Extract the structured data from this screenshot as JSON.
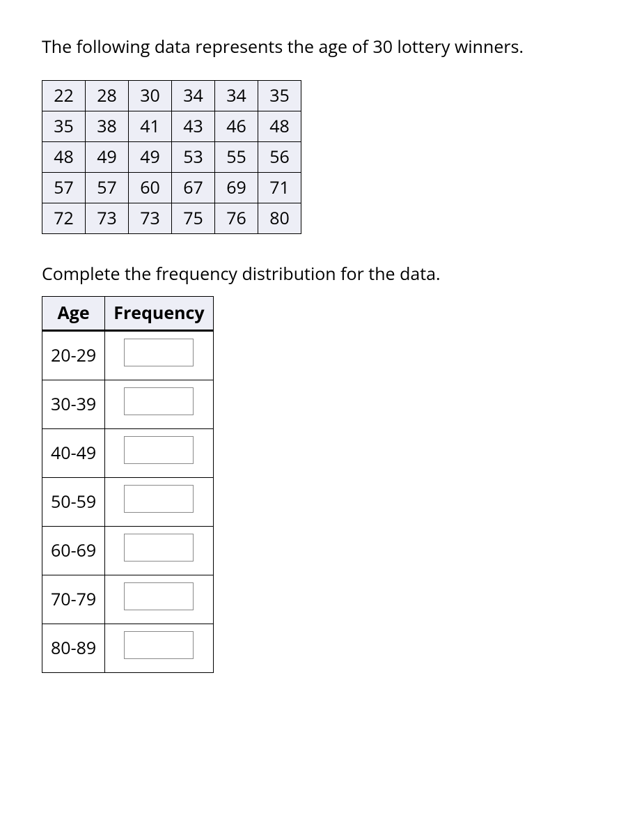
{
  "intro_text": "The following data represents the age of 30 lottery winners.",
  "completion_text": "Complete the frequency distribution for the data.",
  "data_table": {
    "rows": [
      [
        "22",
        "28",
        "30",
        "34",
        "34",
        "35"
      ],
      [
        "35",
        "38",
        "41",
        "43",
        "46",
        "48"
      ],
      [
        "48",
        "49",
        "49",
        "53",
        "55",
        "56"
      ],
      [
        "57",
        "57",
        "60",
        "67",
        "69",
        "71"
      ],
      [
        "72",
        "73",
        "73",
        "75",
        "76",
        "80"
      ]
    ],
    "cell_bg": "#edeef6",
    "border_color": "#000000"
  },
  "freq_table": {
    "headers": {
      "age": "Age",
      "frequency": "Frequency"
    },
    "ranges": [
      "20-29",
      "30-39",
      "40-49",
      "50-59",
      "60-69",
      "70-79",
      "80-89"
    ],
    "header_bg": "#edeef6",
    "cell_bg": "#ffffff",
    "input_border": "#8a8a8a"
  },
  "colors": {
    "background": "#ffffff",
    "text": "#000000"
  },
  "typography": {
    "base_fontsize": 25,
    "font_family": "Open Sans"
  }
}
